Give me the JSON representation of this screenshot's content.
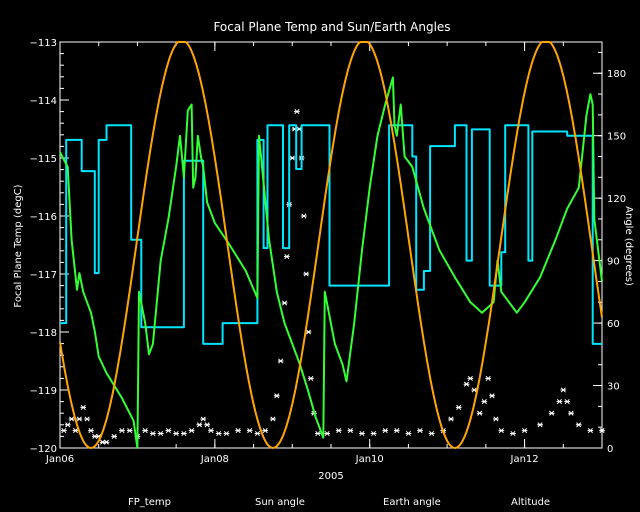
{
  "chart_data": {
    "type": "line",
    "title": "Focal Plane Temp and Sun/Earth Angles",
    "xlabel": "2005",
    "ylabel_left": "Focal Plane Temp (degC)",
    "ylabel_right": "Angle (degrees)",
    "xlim": [
      6.0,
      13.0
    ],
    "ylim_left": [
      -120,
      -113
    ],
    "ylim_right": [
      0,
      195
    ],
    "x_ticks": [
      {
        "x": 6.0,
        "label": "Jan06"
      },
      {
        "x": 8.0,
        "label": "Jan08"
      },
      {
        "x": 10.0,
        "label": "Jan10"
      },
      {
        "x": 12.0,
        "label": "Jan12"
      }
    ],
    "y_ticks_left": [
      {
        "v": -113,
        "label": "−113"
      },
      {
        "v": -114,
        "label": "−114"
      },
      {
        "v": -115,
        "label": "−115"
      },
      {
        "v": -116,
        "label": "−116"
      },
      {
        "v": -117,
        "label": "−117"
      },
      {
        "v": -118,
        "label": "−118"
      },
      {
        "v": -119,
        "label": "−119"
      },
      {
        "v": -120,
        "label": "−120"
      }
    ],
    "y_ticks_right": [
      {
        "v": 0,
        "label": "0"
      },
      {
        "v": 30,
        "label": "30"
      },
      {
        "v": 60,
        "label": "60"
      },
      {
        "v": 90,
        "label": "90"
      },
      {
        "v": 120,
        "label": "120"
      },
      {
        "v": 150,
        "label": "150"
      },
      {
        "v": 180,
        "label": "180"
      }
    ],
    "legend": [
      {
        "label": "FP_temp",
        "color": "#ffffff"
      },
      {
        "label": "Sun angle",
        "color": "#00e5ff"
      },
      {
        "label": "Earth angle",
        "color": "#33ff33"
      },
      {
        "label": "Altitude",
        "color": "#ffa500"
      }
    ],
    "series": [
      {
        "name": "FP_temp",
        "axis": "left",
        "style": "points",
        "color": "#ffffff",
        "points": [
          [
            6.05,
            -119.7
          ],
          [
            6.1,
            -119.6
          ],
          [
            6.15,
            -119.5
          ],
          [
            6.2,
            -119.7
          ],
          [
            6.25,
            -119.5
          ],
          [
            6.3,
            -119.3
          ],
          [
            6.35,
            -119.5
          ],
          [
            6.4,
            -119.7
          ],
          [
            6.45,
            -119.8
          ],
          [
            6.5,
            -119.8
          ],
          [
            6.55,
            -119.9
          ],
          [
            6.6,
            -119.9
          ],
          [
            6.7,
            -119.8
          ],
          [
            6.8,
            -119.7
          ],
          [
            6.9,
            -119.7
          ],
          [
            7.0,
            -119.8
          ],
          [
            7.1,
            -119.7
          ],
          [
            7.2,
            -119.75
          ],
          [
            7.3,
            -119.75
          ],
          [
            7.4,
            -119.7
          ],
          [
            7.5,
            -119.75
          ],
          [
            7.6,
            -119.75
          ],
          [
            7.7,
            -119.7
          ],
          [
            7.8,
            -119.6
          ],
          [
            7.85,
            -119.5
          ],
          [
            7.9,
            -119.6
          ],
          [
            7.95,
            -119.7
          ],
          [
            8.05,
            -119.75
          ],
          [
            8.15,
            -119.75
          ],
          [
            8.3,
            -119.7
          ],
          [
            8.45,
            -119.7
          ],
          [
            8.55,
            -119.75
          ],
          [
            8.65,
            -119.7
          ],
          [
            8.75,
            -119.5
          ],
          [
            8.8,
            -119.1
          ],
          [
            8.85,
            -118.5
          ],
          [
            8.9,
            -117.5
          ],
          [
            8.93,
            -116.7
          ],
          [
            8.96,
            -115.8
          ],
          [
            9.0,
            -115.0
          ],
          [
            9.03,
            -114.5
          ],
          [
            9.06,
            -114.2
          ],
          [
            9.09,
            -114.5
          ],
          [
            9.12,
            -115.0
          ],
          [
            9.15,
            -116.0
          ],
          [
            9.18,
            -117.0
          ],
          [
            9.21,
            -118.0
          ],
          [
            9.24,
            -118.8
          ],
          [
            9.28,
            -119.4
          ],
          [
            9.33,
            -119.75
          ],
          [
            9.45,
            -119.75
          ],
          [
            9.6,
            -119.7
          ],
          [
            9.75,
            -119.7
          ],
          [
            9.9,
            -119.75
          ],
          [
            10.05,
            -119.75
          ],
          [
            10.2,
            -119.7
          ],
          [
            10.35,
            -119.7
          ],
          [
            10.5,
            -119.75
          ],
          [
            10.65,
            -119.7
          ],
          [
            10.8,
            -119.75
          ],
          [
            10.95,
            -119.7
          ],
          [
            11.05,
            -119.5
          ],
          [
            11.15,
            -119.3
          ],
          [
            11.25,
            -118.9
          ],
          [
            11.3,
            -118.8
          ],
          [
            11.35,
            -119.0
          ],
          [
            11.42,
            -119.4
          ],
          [
            11.48,
            -119.2
          ],
          [
            11.53,
            -118.8
          ],
          [
            11.58,
            -119.1
          ],
          [
            11.63,
            -119.5
          ],
          [
            11.7,
            -119.7
          ],
          [
            11.85,
            -119.75
          ],
          [
            12.0,
            -119.7
          ],
          [
            12.2,
            -119.6
          ],
          [
            12.35,
            -119.4
          ],
          [
            12.45,
            -119.2
          ],
          [
            12.5,
            -119.0
          ],
          [
            12.55,
            -119.2
          ],
          [
            12.6,
            -119.4
          ],
          [
            12.7,
            -119.6
          ],
          [
            12.85,
            -119.7
          ],
          [
            13.0,
            -119.7
          ]
        ]
      },
      {
        "name": "Sun angle",
        "axis": "right",
        "style": "line",
        "color": "#00e5ff",
        "points": [
          [
            6.0,
            60
          ],
          [
            6.08,
            60
          ],
          [
            6.08,
            148
          ],
          [
            6.28,
            148
          ],
          [
            6.28,
            133
          ],
          [
            6.45,
            133
          ],
          [
            6.45,
            84
          ],
          [
            6.5,
            84
          ],
          [
            6.5,
            148
          ],
          [
            6.6,
            148
          ],
          [
            6.6,
            155
          ],
          [
            6.92,
            155
          ],
          [
            6.92,
            100
          ],
          [
            7.05,
            100
          ],
          [
            7.05,
            58
          ],
          [
            7.6,
            58
          ],
          [
            7.6,
            138
          ],
          [
            7.85,
            138
          ],
          [
            7.85,
            50
          ],
          [
            8.1,
            50
          ],
          [
            8.1,
            60
          ],
          [
            8.55,
            60
          ],
          [
            8.55,
            148
          ],
          [
            8.63,
            148
          ],
          [
            8.63,
            96
          ],
          [
            8.68,
            96
          ],
          [
            8.68,
            155
          ],
          [
            8.88,
            155
          ],
          [
            8.88,
            96
          ],
          [
            8.96,
            96
          ],
          [
            8.96,
            155
          ],
          [
            9.05,
            155
          ],
          [
            9.05,
            134
          ],
          [
            9.12,
            134
          ],
          [
            9.12,
            155
          ],
          [
            9.48,
            155
          ],
          [
            9.48,
            78
          ],
          [
            10.25,
            78
          ],
          [
            10.25,
            155
          ],
          [
            10.55,
            155
          ],
          [
            10.55,
            140
          ],
          [
            10.6,
            140
          ],
          [
            10.6,
            76
          ],
          [
            10.7,
            76
          ],
          [
            10.7,
            85
          ],
          [
            10.78,
            85
          ],
          [
            10.78,
            145
          ],
          [
            11.1,
            145
          ],
          [
            11.1,
            155
          ],
          [
            11.25,
            155
          ],
          [
            11.25,
            90
          ],
          [
            11.32,
            90
          ],
          [
            11.32,
            153
          ],
          [
            11.55,
            153
          ],
          [
            11.55,
            78
          ],
          [
            11.7,
            78
          ],
          [
            11.7,
            94
          ],
          [
            11.75,
            94
          ],
          [
            11.75,
            155
          ],
          [
            12.05,
            155
          ],
          [
            12.05,
            90
          ],
          [
            12.1,
            90
          ],
          [
            12.1,
            152
          ],
          [
            12.55,
            152
          ],
          [
            12.55,
            150
          ],
          [
            12.88,
            150
          ],
          [
            12.88,
            50
          ],
          [
            13.0,
            50
          ]
        ]
      },
      {
        "name": "Earth angle",
        "axis": "right",
        "style": "line",
        "color": "#33ff33",
        "points": [
          [
            6.0,
            142
          ],
          [
            6.1,
            135
          ],
          [
            6.15,
            100
          ],
          [
            6.22,
            76
          ],
          [
            6.25,
            84
          ],
          [
            6.3,
            75
          ],
          [
            6.35,
            70
          ],
          [
            6.4,
            65
          ],
          [
            6.45,
            56
          ],
          [
            6.5,
            44
          ],
          [
            6.6,
            36
          ],
          [
            6.8,
            24
          ],
          [
            6.95,
            13
          ],
          [
            7.0,
            0
          ],
          [
            7.02,
            75
          ],
          [
            7.1,
            60
          ],
          [
            7.15,
            45
          ],
          [
            7.2,
            50
          ],
          [
            7.3,
            90
          ],
          [
            7.4,
            110
          ],
          [
            7.5,
            135
          ],
          [
            7.55,
            150
          ],
          [
            7.6,
            130
          ],
          [
            7.65,
            162
          ],
          [
            7.7,
            165
          ],
          [
            7.72,
            125
          ],
          [
            7.75,
            130
          ],
          [
            7.78,
            150
          ],
          [
            7.8,
            145
          ],
          [
            7.82,
            140
          ],
          [
            7.85,
            135
          ],
          [
            7.9,
            118
          ],
          [
            8.0,
            108
          ],
          [
            8.2,
            97
          ],
          [
            8.4,
            85
          ],
          [
            8.55,
            72
          ],
          [
            8.57,
            150
          ],
          [
            8.7,
            100
          ],
          [
            8.8,
            75
          ],
          [
            8.9,
            60
          ],
          [
            9.0,
            50
          ],
          [
            9.1,
            40
          ],
          [
            9.2,
            28
          ],
          [
            9.3,
            15
          ],
          [
            9.4,
            5
          ],
          [
            9.42,
            75
          ],
          [
            9.55,
            50
          ],
          [
            9.65,
            40
          ],
          [
            9.7,
            32
          ],
          [
            9.8,
            60
          ],
          [
            9.9,
            95
          ],
          [
            10.0,
            125
          ],
          [
            10.1,
            150
          ],
          [
            10.2,
            165
          ],
          [
            10.3,
            178
          ],
          [
            10.32,
            155
          ],
          [
            10.35,
            150
          ],
          [
            10.4,
            165
          ],
          [
            10.45,
            140
          ],
          [
            10.55,
            135
          ],
          [
            10.7,
            115
          ],
          [
            10.9,
            95
          ],
          [
            11.1,
            82
          ],
          [
            11.3,
            70
          ],
          [
            11.45,
            65
          ],
          [
            11.6,
            70
          ],
          [
            11.65,
            90
          ],
          [
            11.7,
            75
          ],
          [
            11.9,
            65
          ],
          [
            12.0,
            70
          ],
          [
            12.2,
            82
          ],
          [
            12.4,
            100
          ],
          [
            12.55,
            115
          ],
          [
            12.7,
            125
          ],
          [
            12.8,
            160
          ],
          [
            12.85,
            170
          ],
          [
            12.88,
            165
          ],
          [
            12.9,
            110
          ],
          [
            13.0,
            80
          ]
        ]
      },
      {
        "name": "Altitude",
        "axis": "right",
        "style": "line",
        "color": "#ffa500",
        "model": {
          "type": "cosine",
          "period": 2.35,
          "phase": 6.4,
          "min": 0,
          "max": 196
        }
      }
    ]
  }
}
